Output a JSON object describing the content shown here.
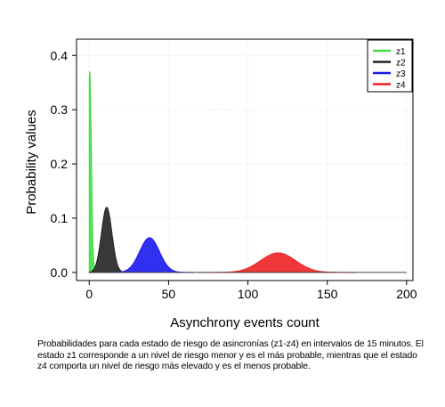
{
  "chart_data": {
    "type": "area",
    "xlabel": "Asynchrony events count",
    "ylabel": "Probability values",
    "xlim": [
      -8,
      204
    ],
    "ylim": [
      -0.015,
      0.43
    ],
    "xticks": [
      "0",
      "50",
      "100",
      "150",
      "200"
    ],
    "xtick_values": [
      0,
      50,
      100,
      150,
      200
    ],
    "yticks": [
      "0.0",
      "0.1",
      "0.2",
      "0.3",
      "0.4"
    ],
    "ytick_values": [
      0.0,
      0.1,
      0.2,
      0.3,
      0.4
    ],
    "grid": true,
    "legend_position": "top-right",
    "series": [
      {
        "name": "z1",
        "color": "#44dd44",
        "mean": 0.3,
        "sd": 1.07,
        "peak": 0.37
      },
      {
        "name": "z2",
        "color": "#222222",
        "mean": 11,
        "sd": 3.3,
        "peak": 0.12
      },
      {
        "name": "z3",
        "color": "#1a1aee",
        "mean": 38,
        "sd": 6.2,
        "peak": 0.064
      },
      {
        "name": "z4",
        "color": "#ee2222",
        "mean": 119,
        "sd": 11,
        "peak": 0.036
      }
    ]
  },
  "caption": "Probabilidades para cada estado de riesgo de asincronías (z1-z4) en intervalos de 15 minutos. El estado z1 corresponde a un nivel de riesgo menor y es el más probable, mientras que el estado z4 comporta un nivel de riesgo más elevado y es el menos probable."
}
